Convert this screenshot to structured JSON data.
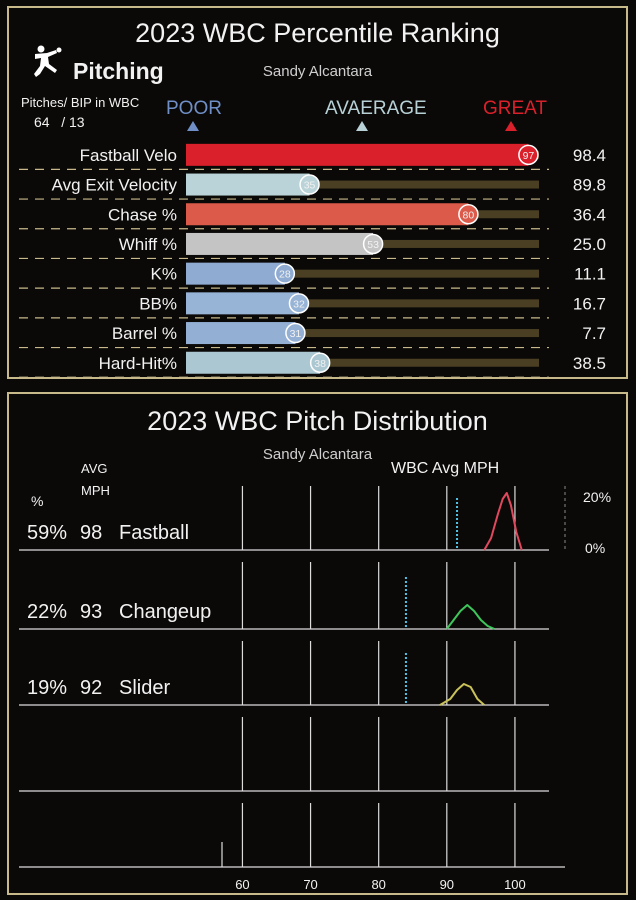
{
  "ranking": {
    "title": "2023 WBC Percentile Ranking",
    "player": "Sandy Alcantara",
    "section": "Pitching",
    "counts_label": "Pitches/ BIP in WBC",
    "counts_value": "64   / 13",
    "scale": {
      "poor": "POOR",
      "average": "AVAERAGE",
      "great": "GREAT"
    },
    "colors": {
      "poor": "#6f8fc6",
      "average": "#b7d1d6",
      "great": "#d9202b"
    }
  },
  "distribution": {
    "title": "2023 WBC Pitch Distribution",
    "player": "Sandy Alcantara",
    "avg_mph_label": "WBC Avg MPH",
    "col_avg": "AVG",
    "col_mph": "MPH",
    "col_pct": "%",
    "scale_max": "20%",
    "scale_min": "0%"
  },
  "chart_data": [
    {
      "type": "bar",
      "title": "2023 WBC Percentile Ranking",
      "categories": [
        "Fastball Velo",
        "Avg Exit Velocity",
        "Chase %",
        "Whiff %",
        "K%",
        "BB%",
        "Barrel %",
        "Hard-Hit%"
      ],
      "percentiles": [
        97,
        35,
        80,
        53,
        28,
        32,
        31,
        38
      ],
      "values": [
        "98.4",
        "89.8",
        "36.4",
        "25.0",
        "11.1",
        "16.7",
        "7.7",
        "38.5"
      ],
      "bar_colors": [
        "#d9202b",
        "#b9d3d8",
        "#dc5a4a",
        "#c4c4c4",
        "#8fabd2",
        "#97b3d6",
        "#93afd4",
        "#aac7d2"
      ],
      "xlim": [
        0,
        100
      ]
    },
    {
      "type": "line",
      "title": "2023 WBC Pitch Distribution",
      "xlim": [
        57,
        105
      ],
      "x_ticks": [
        60,
        70,
        80,
        90,
        100
      ],
      "series": [
        {
          "name": "Fastball",
          "pct": "59%",
          "avg_mph": "98",
          "wbc_avg_mph": 91.5,
          "color": "#e0485e",
          "curve": [
            [
              95.5,
              0
            ],
            [
              96.5,
              4
            ],
            [
              97.5,
              12
            ],
            [
              98.2,
              17
            ],
            [
              98.8,
              19
            ],
            [
              99.4,
              15
            ],
            [
              100.2,
              6
            ],
            [
              101,
              0
            ]
          ]
        },
        {
          "name": "Changeup",
          "pct": "22%",
          "avg_mph": "93",
          "wbc_avg_mph": 84,
          "color": "#3ec65a",
          "curve": [
            [
              90,
              0
            ],
            [
              91,
              3
            ],
            [
              92,
              6
            ],
            [
              93,
              8
            ],
            [
              94,
              6
            ],
            [
              95,
              3
            ],
            [
              96,
              1
            ],
            [
              97,
              0
            ]
          ]
        },
        {
          "name": "Slider",
          "pct": "19%",
          "avg_mph": "92",
          "wbc_avg_mph": 84,
          "color": "#c9c25a",
          "curve": [
            [
              89,
              0
            ],
            [
              90.5,
              2
            ],
            [
              91.5,
              5
            ],
            [
              92.5,
              7
            ],
            [
              93.5,
              6
            ],
            [
              94.5,
              2
            ],
            [
              95.5,
              0
            ]
          ]
        }
      ]
    }
  ]
}
